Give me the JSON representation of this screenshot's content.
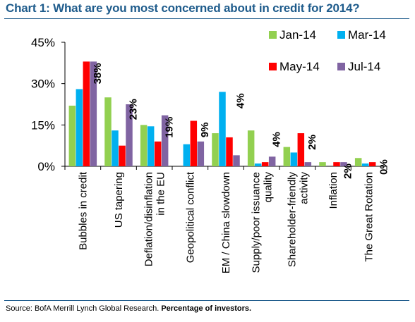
{
  "title": "Chart 1: What are you most concerned about in credit for 2014?",
  "source": {
    "prefix": "Source: BofA Merrill Lynch Global Research. ",
    "emphasis": "Percentage of investors."
  },
  "chart_data": {
    "type": "bar",
    "title": "Chart 1: What are you most concerned about in credit for 2014?",
    "xlabel": "",
    "ylabel": "",
    "ylim": [
      0,
      45
    ],
    "yticks": [
      0,
      15,
      30,
      45
    ],
    "ytick_labels": [
      "0%",
      "15%",
      "30%",
      "45%"
    ],
    "grid": false,
    "legend_position": "top-right",
    "categories": [
      [
        "Bubbles in credit"
      ],
      [
        "US tapering"
      ],
      [
        "Deflation/disinflation",
        "in the EU"
      ],
      [
        "Geopolitical conflict"
      ],
      [
        "EM / China slowdown"
      ],
      [
        "Supply/poor issuance",
        "quality"
      ],
      [
        "Shareholder-friendly",
        "activity"
      ],
      [
        "Inflation"
      ],
      [
        "The Great Rotation"
      ]
    ],
    "series": [
      {
        "name": "Jan-14",
        "color": "#92d050",
        "values": [
          22,
          25,
          15,
          0,
          12,
          13,
          7,
          1.5,
          3
        ]
      },
      {
        "name": "Mar-14",
        "color": "#00b0f0",
        "values": [
          28,
          13,
          14.5,
          8,
          27,
          1,
          5,
          0,
          1
        ]
      },
      {
        "name": "May-14",
        "color": "#ff0000",
        "values": [
          38,
          7.5,
          9,
          16.5,
          10.5,
          1.5,
          12,
          1.5,
          1.5
        ]
      },
      {
        "name": "Jul-14",
        "color": "#8064a2",
        "values": [
          38,
          22.5,
          18.5,
          9,
          4,
          3.5,
          1.5,
          1.5,
          0
        ]
      }
    ],
    "data_labels": [
      "38%",
      "23%",
      "19%",
      "9%",
      "4%",
      "4%",
      "2%",
      "2%",
      "0%"
    ]
  }
}
